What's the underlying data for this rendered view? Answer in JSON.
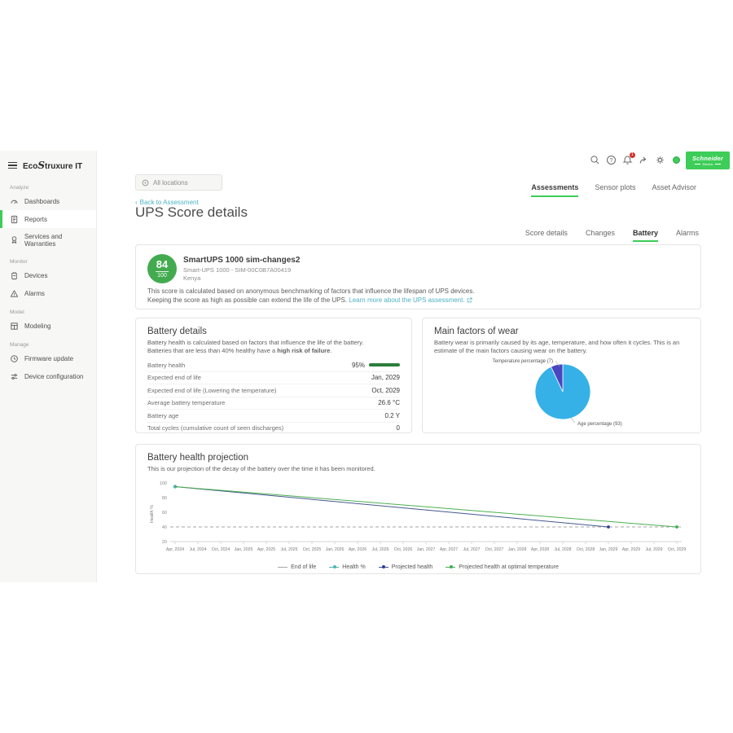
{
  "brand": {
    "sidebar_logo": {
      "prefix": "Eco",
      "s": "S",
      "suffix": "truxure IT"
    },
    "vendor_logo": {
      "line1": "Schneider",
      "line2": "Electric"
    }
  },
  "colors": {
    "brand_green": "#3dcd58",
    "score_green": "#43ab4f",
    "link_teal": "#4db2c4",
    "pie_blue": "#35b1e8",
    "pie_purple": "#4a46c0",
    "projected_health": "#46588f",
    "optimal_green": "#4caf50",
    "health_teal": "#4db6ac",
    "end_of_life_gray": "#a6a6a6"
  },
  "sidebar": {
    "sections": [
      {
        "label": "Analyze",
        "items": [
          {
            "label": "Dashboards",
            "icon": "dashboard",
            "active": false
          },
          {
            "label": "Reports",
            "icon": "report",
            "active": true
          },
          {
            "label": "Services and Warranties",
            "icon": "services",
            "active": false
          }
        ]
      },
      {
        "label": "Monitor",
        "items": [
          {
            "label": "Devices",
            "icon": "device",
            "active": false
          },
          {
            "label": "Alarms",
            "icon": "alarm",
            "active": false
          }
        ]
      },
      {
        "label": "Model",
        "items": [
          {
            "label": "Modeling",
            "icon": "modeling",
            "active": false
          }
        ]
      },
      {
        "label": "Manage",
        "items": [
          {
            "label": "Firmware update",
            "icon": "firmware",
            "active": false
          },
          {
            "label": "Device configuration",
            "icon": "config",
            "active": false
          }
        ]
      }
    ]
  },
  "topbar": {
    "notification_badge": "1"
  },
  "location_filter": {
    "label": "All locations"
  },
  "tabs": [
    {
      "label": "Assessments",
      "active": true
    },
    {
      "label": "Sensor plots",
      "active": false
    },
    {
      "label": "Asset Advisor",
      "active": false
    }
  ],
  "back_link": "Back to Assessment",
  "page_title": "UPS Score details",
  "subtabs": [
    {
      "label": "Score details",
      "active": false
    },
    {
      "label": "Changes",
      "active": false
    },
    {
      "label": "Battery",
      "active": true
    },
    {
      "label": "Alarms",
      "active": false
    }
  ],
  "score_card": {
    "score": "84",
    "total": "100",
    "title": "SmartUPS 1000 sim-changes2",
    "model": "Smart-UPS 1000 - SIM-00C0B7A00419",
    "location": "Kenya",
    "description_line1": "This score is calculated based on anonymous benchmarking of factors that influence the lifespan of UPS devices.",
    "description_line2": "Keeping the score as high as possible can extend the life of the UPS.",
    "link_label": "Learn more about the UPS assessment."
  },
  "battery_details": {
    "title": "Battery details",
    "description_line1": "Battery health is calculated based on factors that influence the life of the battery.",
    "description_line2_prefix": "Batteries that are less than 40% healthy have a ",
    "description_line2_bold": "high risk of failure",
    "description_line2_suffix": ".",
    "rows": [
      {
        "label": "Battery health",
        "value": "95%",
        "bar": true
      },
      {
        "label": "Expected end of life",
        "value": "Jan, 2029"
      },
      {
        "label": "Expected end of life (Lowering the temperature)",
        "value": "Oct, 2029"
      },
      {
        "label": "Average battery temperature",
        "value": "26.6 °C"
      },
      {
        "label": "Battery age",
        "value": "0.2 Y"
      },
      {
        "label": "Total cycles (cumulative count of seen discharges)",
        "value": "0"
      }
    ]
  },
  "wear": {
    "title": "Main factors of wear",
    "description": "Battery wear is primarily caused by its age, temperature, and how often it cycles. This is an estimate of the main factors causing wear on the battery."
  },
  "projection": {
    "title": "Battery health projection",
    "description": "This is our projection of the decay of the battery over the time it has been monitored."
  },
  "chart_data": [
    {
      "type": "pie",
      "title": "Main factors of wear",
      "slices": [
        {
          "label": "Age percentage (93)",
          "value": 93,
          "color": "#35b1e8"
        },
        {
          "label": "Temperature percentage (7)",
          "value": 7,
          "color": "#4a46c0"
        }
      ],
      "start_angle_deg": -90,
      "direction": "clockwise"
    },
    {
      "type": "line",
      "title": "Battery health projection",
      "ylabel": "Health %",
      "ylim": [
        20,
        100
      ],
      "yticks": [
        20,
        40,
        60,
        80,
        100
      ],
      "legend_position": "bottom",
      "x_labels": [
        "Apr, 2024",
        "Jul, 2024",
        "Oct, 2024",
        "Jan, 2025",
        "Apr, 2025",
        "Jul, 2025",
        "Oct, 2025",
        "Jan, 2026",
        "Apr, 2026",
        "Jul, 2026",
        "Oct, 2026",
        "Jan, 2027",
        "Apr, 2027",
        "Jul, 2027",
        "Oct, 2027",
        "Jan, 2028",
        "Apr, 2028",
        "Jul, 2028",
        "Oct, 2028",
        "Jan, 2029",
        "Apr, 2029",
        "Jul, 2029",
        "Oct, 2029"
      ],
      "series": [
        {
          "name": "End of life",
          "style": "dashed-hline",
          "y": 40,
          "color": "#a6a6a6"
        },
        {
          "name": "Health %",
          "style": "points",
          "color": "#4db6ac",
          "points": [
            [
              "Apr, 2024",
              95
            ]
          ]
        },
        {
          "name": "Projected health",
          "style": "line",
          "color": "#46588f",
          "marker_color": "#2e3f8f",
          "points": [
            [
              "Apr, 2024",
              95
            ],
            [
              "Jan, 2029",
              40
            ]
          ]
        },
        {
          "name": "Projected health at optimal temperature",
          "style": "line",
          "color": "#4caf50",
          "marker_color": "#3cae53",
          "points": [
            [
              "Apr, 2024",
              95
            ],
            [
              "Oct, 2029",
              40
            ]
          ]
        }
      ]
    }
  ]
}
